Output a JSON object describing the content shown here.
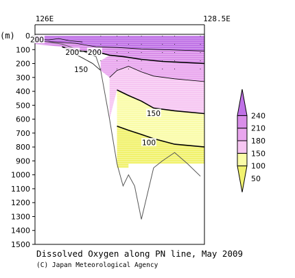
{
  "chart_data": {
    "type": "heatmap",
    "title": "Dissolved Oxygen along PN line, May 2009",
    "credit": "(C) Japan Meteorological Agency",
    "x_ticks": [
      {
        "lon": 126.0,
        "label": "126E"
      },
      {
        "lon": 128.5,
        "label": "128.5E"
      }
    ],
    "xlim": [
      126.0,
      128.5
    ],
    "ylabel": "(m)",
    "ylim": [
      0,
      1500
    ],
    "y_ticks": [
      0,
      100,
      200,
      300,
      400,
      500,
      600,
      700,
      800,
      900,
      1000,
      1100,
      1200,
      1300,
      1400,
      1500
    ],
    "colorbar": {
      "levels": [
        50,
        100,
        150,
        180,
        210,
        240
      ],
      "colors": [
        "#f1f26e",
        "#fafca8",
        "#f6c6f2",
        "#e9a6ee",
        "#d98ee9",
        "#bf71e6"
      ],
      "extend_low": true,
      "extend_high": true
    },
    "stations_lon": [
      126.97,
      127.21,
      127.38,
      127.57,
      127.88,
      128.06,
      128.44
    ],
    "bottom_profile": [
      {
        "lon": 126.0,
        "depth": 30
      },
      {
        "lon": 126.4,
        "depth": 60
      },
      {
        "lon": 126.75,
        "depth": 120
      },
      {
        "lon": 126.9,
        "depth": 150
      },
      {
        "lon": 126.97,
        "depth": 250
      },
      {
        "lon": 127.1,
        "depth": 600
      },
      {
        "lon": 127.21,
        "depth": 920
      },
      {
        "lon": 127.3,
        "depth": 1080
      },
      {
        "lon": 127.38,
        "depth": 1000
      },
      {
        "lon": 127.47,
        "depth": 1080
      },
      {
        "lon": 127.57,
        "depth": 1320
      },
      {
        "lon": 127.75,
        "depth": 950
      },
      {
        "lon": 127.88,
        "depth": 900
      },
      {
        "lon": 128.06,
        "depth": 840
      },
      {
        "lon": 128.25,
        "depth": 920
      },
      {
        "lon": 128.44,
        "depth": 1010
      }
    ],
    "contour_labels": [
      {
        "value": "200",
        "lon": 126.55,
        "depth": 120
      },
      {
        "value": "200",
        "lon": 126.88,
        "depth": 120
      },
      {
        "value": "200",
        "lon": 126.03,
        "depth": 30
      },
      {
        "value": "150",
        "lon": 126.68,
        "depth": 245
      },
      {
        "value": "150",
        "lon": 127.75,
        "depth": 560
      },
      {
        "value": "100",
        "lon": 127.68,
        "depth": 770
      }
    ]
  }
}
